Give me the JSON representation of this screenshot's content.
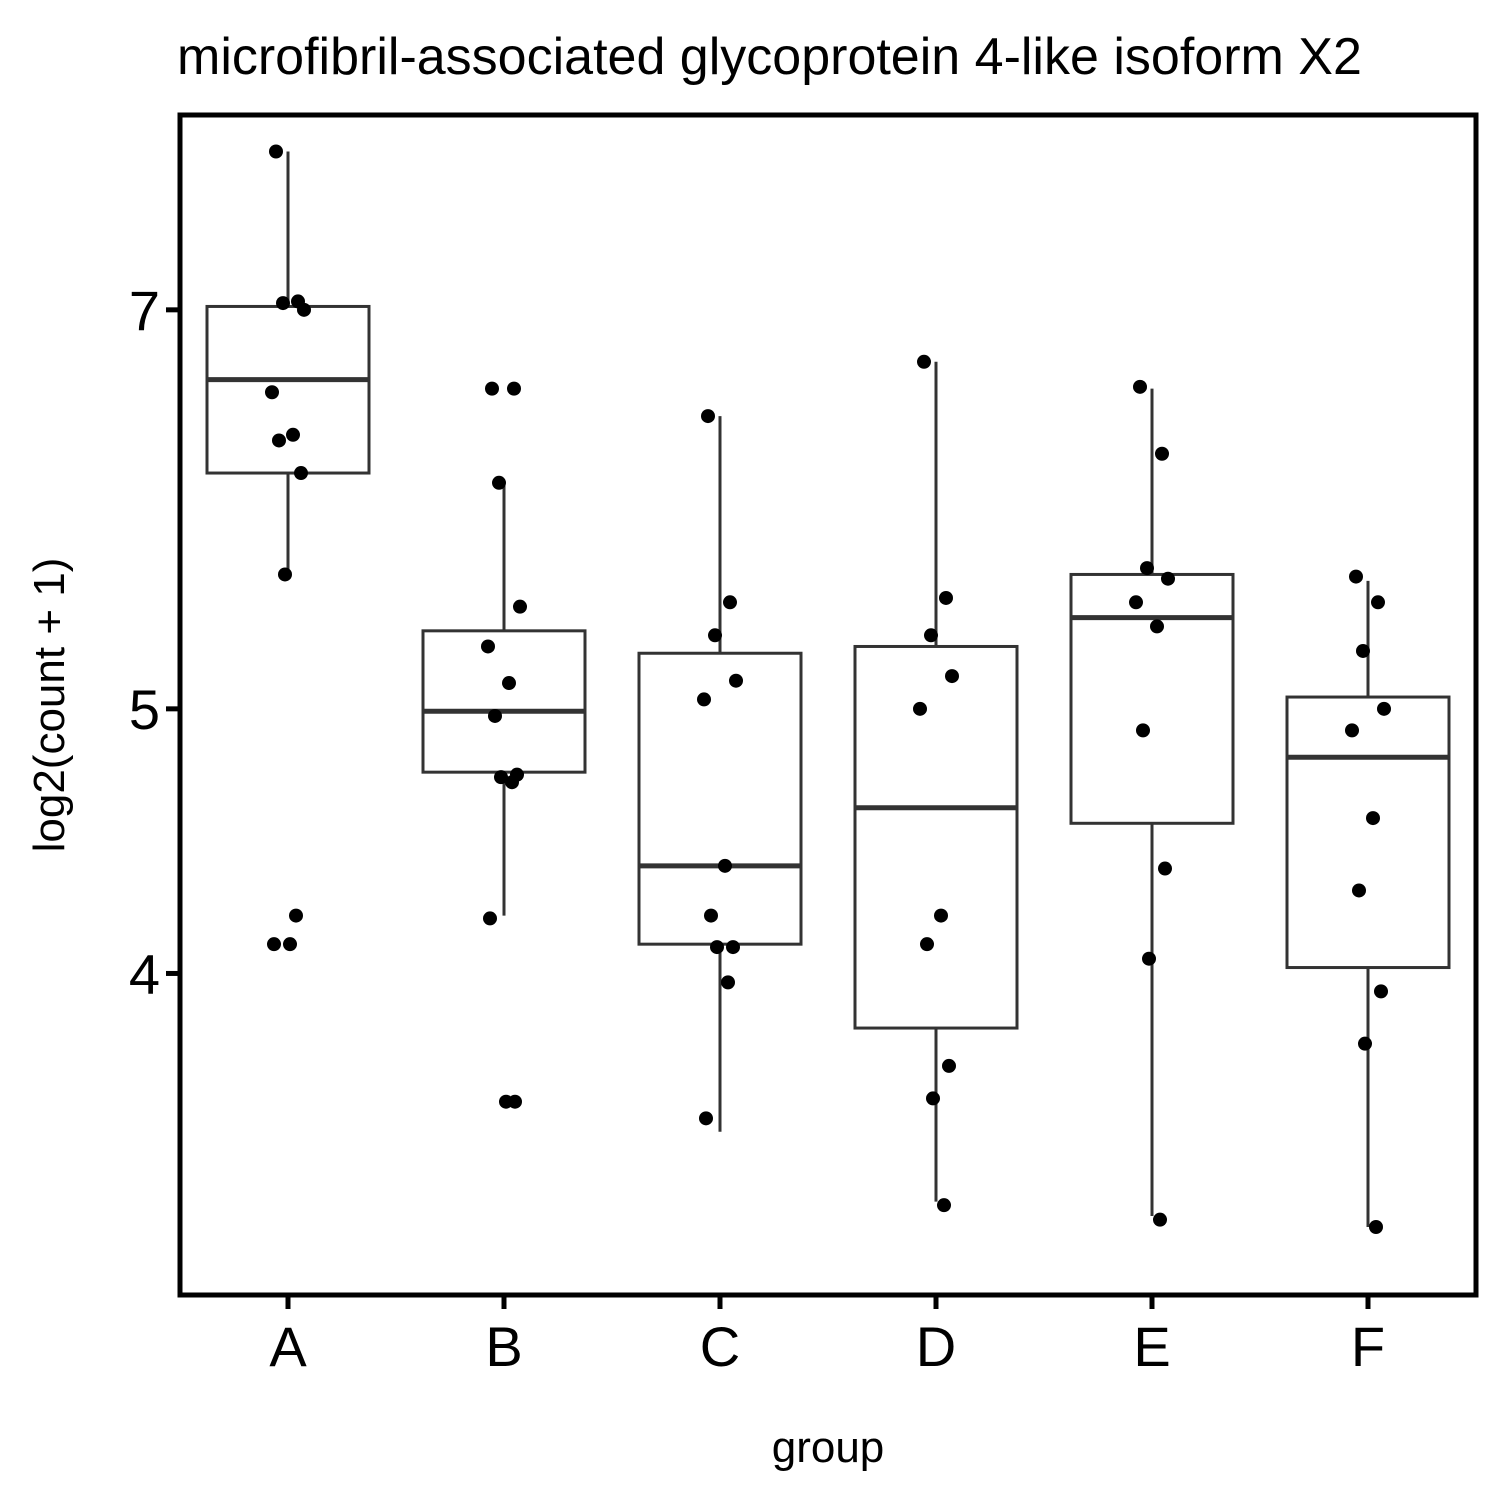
{
  "chart_data": {
    "type": "box",
    "title": "microfibril-associated glycoprotein 4-like isoform X2",
    "xlabel": "group",
    "ylabel": "log2(count + 1)",
    "y_scale": "log",
    "ylim": [
      3.05,
      8.25
    ],
    "y_ticks": [
      4,
      5,
      7
    ],
    "y_tick_labels": [
      "4",
      "5",
      "7"
    ],
    "categories": [
      "A",
      "B",
      "C",
      "D",
      "E",
      "F"
    ],
    "grid": false,
    "legend": "none",
    "boxes": [
      {
        "group": "A",
        "whisker_low": 5.6,
        "q1": 6.1,
        "median": 6.6,
        "q3": 7.02,
        "whisker_high": 8.0
      },
      {
        "group": "B",
        "whisker_low": 4.2,
        "q1": 4.74,
        "median": 4.99,
        "q3": 5.34,
        "whisker_high": 6.05
      },
      {
        "group": "C",
        "whisker_low": 3.5,
        "q1": 4.1,
        "median": 4.38,
        "q3": 5.24,
        "whisker_high": 6.4
      },
      {
        "group": "D",
        "whisker_low": 3.3,
        "q1": 3.82,
        "median": 4.6,
        "q3": 5.27,
        "whisker_high": 6.7
      },
      {
        "group": "E",
        "whisker_low": 3.26,
        "q1": 4.54,
        "median": 5.4,
        "q3": 5.6,
        "whisker_high": 6.55
      },
      {
        "group": "F",
        "whisker_low": 3.23,
        "q1": 4.02,
        "median": 4.8,
        "q3": 5.05,
        "whisker_high": 5.57
      }
    ],
    "points": [
      {
        "group": "A",
        "values": [
          8.0,
          7.05,
          7.04,
          7.0,
          6.53,
          6.3,
          6.27,
          6.1,
          5.6,
          4.2,
          4.1,
          4.1
        ]
      },
      {
        "group": "B",
        "values": [
          6.55,
          6.55,
          6.05,
          5.45,
          5.27,
          5.11,
          4.97,
          4.73,
          4.72,
          4.7,
          4.19,
          3.59,
          3.59
        ]
      },
      {
        "group": "C",
        "values": [
          6.4,
          5.47,
          5.32,
          5.12,
          5.04,
          4.38,
          4.2,
          4.09,
          4.09,
          3.97,
          3.54
        ]
      },
      {
        "group": "D",
        "values": [
          6.7,
          5.49,
          5.32,
          5.14,
          5.0,
          4.2,
          4.1,
          3.7,
          3.6,
          3.29
        ]
      },
      {
        "group": "E",
        "values": [
          6.56,
          6.2,
          5.63,
          5.58,
          5.47,
          5.36,
          4.91,
          4.37,
          4.05,
          3.25
        ]
      },
      {
        "group": "F",
        "values": [
          5.59,
          5.47,
          5.25,
          5.0,
          4.91,
          4.56,
          4.29,
          3.94,
          3.77,
          3.23
        ]
      }
    ]
  }
}
